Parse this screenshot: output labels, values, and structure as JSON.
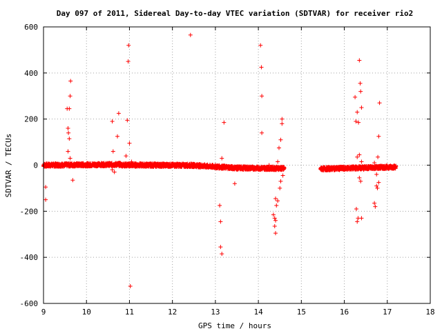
{
  "chart_data": {
    "type": "scatter",
    "title": "Day 097 of 2011, Sidereal Day-to-day VTEC variation (SDTVAR) for receiver rio2",
    "xlabel": "GPS time / hours",
    "ylabel": "SDTVAR / TECUs",
    "xlim": [
      9,
      18
    ],
    "ylim": [
      -600,
      600
    ],
    "xticks": [
      9,
      10,
      11,
      12,
      13,
      14,
      15,
      16,
      17,
      18
    ],
    "yticks": [
      -600,
      -400,
      -200,
      0,
      200,
      400,
      600
    ],
    "grid": true,
    "marker_color": "#ff0000",
    "dense_bands": [
      {
        "x_start": 9.0,
        "x_end": 10.8,
        "y_start": 0,
        "y_end": 3
      },
      {
        "x_start": 10.8,
        "x_end": 12.5,
        "y_start": 1,
        "y_end": -1
      },
      {
        "x_start": 12.5,
        "x_end": 13.5,
        "y_start": -1,
        "y_end": -12
      },
      {
        "x_start": 13.5,
        "x_end": 14.6,
        "y_start": -12,
        "y_end": -14
      },
      {
        "x_start": 15.45,
        "x_end": 17.2,
        "y_start": -16,
        "y_end": -8
      }
    ],
    "series": [
      {
        "name": "rio2",
        "points": [
          [
            9.05,
            -95
          ],
          [
            9.05,
            -150
          ],
          [
            9.55,
            245
          ],
          [
            9.57,
            160
          ],
          [
            9.58,
            140
          ],
          [
            9.6,
            115
          ],
          [
            9.57,
            60
          ],
          [
            9.6,
            245
          ],
          [
            9.62,
            300
          ],
          [
            9.63,
            365
          ],
          [
            9.62,
            30
          ],
          [
            9.68,
            -65
          ],
          [
            10.6,
            190
          ],
          [
            10.62,
            60
          ],
          [
            10.6,
            -20
          ],
          [
            10.65,
            -30
          ],
          [
            10.72,
            125
          ],
          [
            10.75,
            225
          ],
          [
            10.92,
            40
          ],
          [
            10.95,
            195
          ],
          [
            10.97,
            450
          ],
          [
            10.98,
            520
          ],
          [
            11.0,
            95
          ],
          [
            11.02,
            -525
          ],
          [
            11.05,
            15
          ],
          [
            12.42,
            565
          ],
          [
            13.1,
            -175
          ],
          [
            13.12,
            -245
          ],
          [
            13.12,
            -355
          ],
          [
            13.15,
            -385
          ],
          [
            13.15,
            30
          ],
          [
            13.2,
            185
          ],
          [
            13.45,
            -80
          ],
          [
            14.05,
            520
          ],
          [
            14.07,
            425
          ],
          [
            14.08,
            300
          ],
          [
            14.08,
            140
          ],
          [
            14.25,
            0
          ],
          [
            14.35,
            -215
          ],
          [
            14.38,
            -230
          ],
          [
            14.38,
            -265
          ],
          [
            14.4,
            -295
          ],
          [
            14.4,
            -240
          ],
          [
            14.4,
            -145
          ],
          [
            14.42,
            -175
          ],
          [
            14.45,
            -155
          ],
          [
            14.45,
            15
          ],
          [
            14.48,
            75
          ],
          [
            14.5,
            -100
          ],
          [
            14.52,
            -70
          ],
          [
            14.52,
            110
          ],
          [
            14.55,
            200
          ],
          [
            14.55,
            180
          ],
          [
            14.57,
            -45
          ],
          [
            14.58,
            -20
          ],
          [
            16.25,
            295
          ],
          [
            16.27,
            190
          ],
          [
            16.3,
            230
          ],
          [
            16.33,
            185
          ],
          [
            16.35,
            455
          ],
          [
            16.37,
            355
          ],
          [
            16.38,
            320
          ],
          [
            16.4,
            250
          ],
          [
            16.28,
            -190
          ],
          [
            16.3,
            -245
          ],
          [
            16.32,
            -230
          ],
          [
            16.35,
            -55
          ],
          [
            16.38,
            -70
          ],
          [
            16.4,
            -230
          ],
          [
            16.3,
            35
          ],
          [
            16.35,
            45
          ],
          [
            16.4,
            15
          ],
          [
            16.45,
            -20
          ],
          [
            16.7,
            -165
          ],
          [
            16.72,
            -180
          ],
          [
            16.75,
            -90
          ],
          [
            16.77,
            -100
          ],
          [
            16.8,
            -75
          ],
          [
            16.8,
            125
          ],
          [
            16.82,
            270
          ],
          [
            16.78,
            35
          ],
          [
            16.75,
            -40
          ],
          [
            16.7,
            10
          ]
        ]
      }
    ]
  }
}
